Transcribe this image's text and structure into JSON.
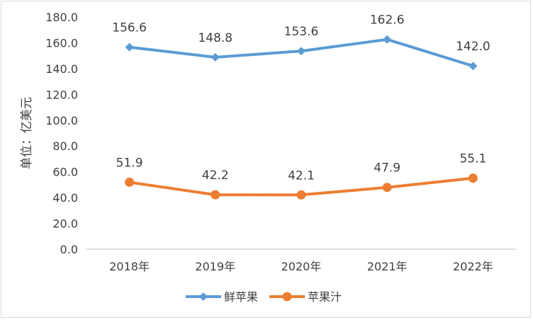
{
  "chart_data": {
    "type": "line",
    "ylabel": "单位：亿美元",
    "xlabel": "",
    "categories": [
      "2018年",
      "2019年",
      "2020年",
      "2021年",
      "2022年"
    ],
    "ylim": [
      0,
      180
    ],
    "yticks": [
      "0.0",
      "20.0",
      "40.0",
      "60.0",
      "80.0",
      "100.0",
      "120.0",
      "140.0",
      "160.0",
      "180.0"
    ],
    "grid": false,
    "legend": "bottom-center",
    "series": [
      {
        "name": "鲜苹果",
        "values": [
          156.6,
          148.8,
          153.6,
          162.6,
          142.0
        ],
        "labels": [
          "156.6",
          "148.8",
          "153.6",
          "162.6",
          "142.0"
        ],
        "color": "#5b9bd5",
        "marker": "diamond"
      },
      {
        "name": "苹果汁",
        "values": [
          51.9,
          42.2,
          42.1,
          47.9,
          55.1
        ],
        "labels": [
          "51.9",
          "42.2",
          "42.1",
          "47.9",
          "55.1"
        ],
        "color": "#ed7d31",
        "marker": "circle"
      }
    ]
  }
}
